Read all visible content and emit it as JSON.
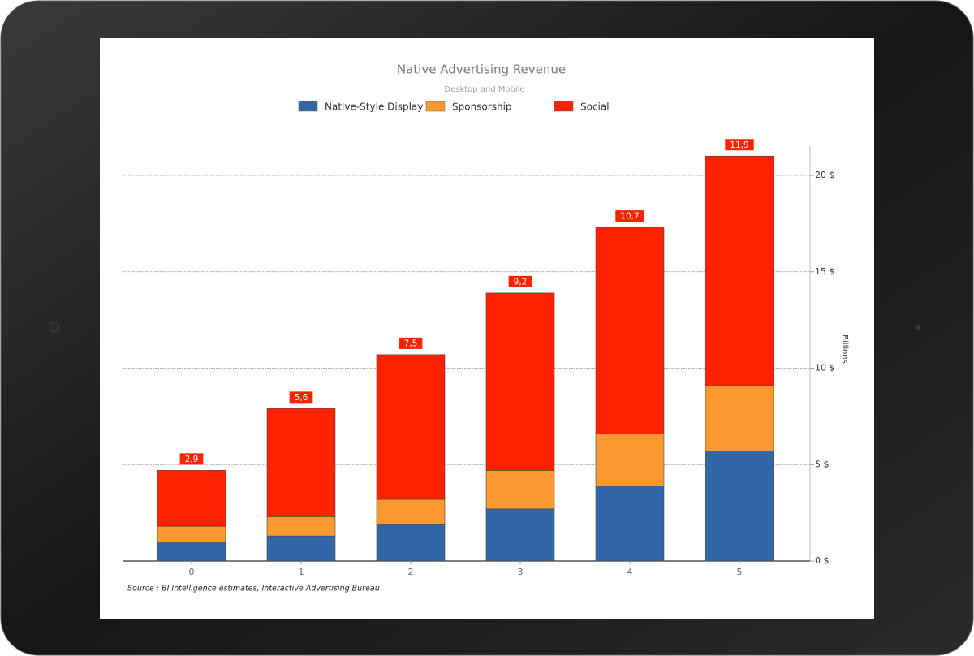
{
  "chart_data": {
    "type": "stacked_bar",
    "title": "Native Advertising Revenue",
    "subtitle": "Desktop and Mobile",
    "categories": [
      "0",
      "1",
      "2",
      "3",
      "4",
      "5"
    ],
    "series": [
      {
        "name": "Native-Style Display",
        "color": "#3366a6",
        "values": [
          1.0,
          1.3,
          1.9,
          2.7,
          3.9,
          5.7
        ]
      },
      {
        "name": "Sponsorship",
        "color": "#fb982f",
        "values": [
          0.8,
          1.0,
          1.3,
          2.0,
          2.7,
          3.4
        ]
      },
      {
        "name": "Social",
        "color": "#ff2200",
        "values": [
          2.9,
          5.6,
          7.5,
          9.2,
          10.7,
          11.9
        ],
        "value_labels": [
          "2,9",
          "5,6",
          "7,5",
          "9,2",
          "10,7",
          "11,9"
        ]
      }
    ],
    "ylim": [
      0,
      21.5
    ],
    "yticks": [
      {
        "value": 0,
        "label": "0 $"
      },
      {
        "value": 5,
        "label": "5 $"
      },
      {
        "value": 10,
        "label": "10 $"
      },
      {
        "value": 15,
        "label": "15 $"
      },
      {
        "value": 20,
        "label": "20 $"
      }
    ],
    "y_label": "Billions",
    "y_axis_side": "right",
    "grid": true,
    "legend": "top",
    "source": "Source : BI Intelligence estimates, Interactive Advertising Bureau"
  }
}
